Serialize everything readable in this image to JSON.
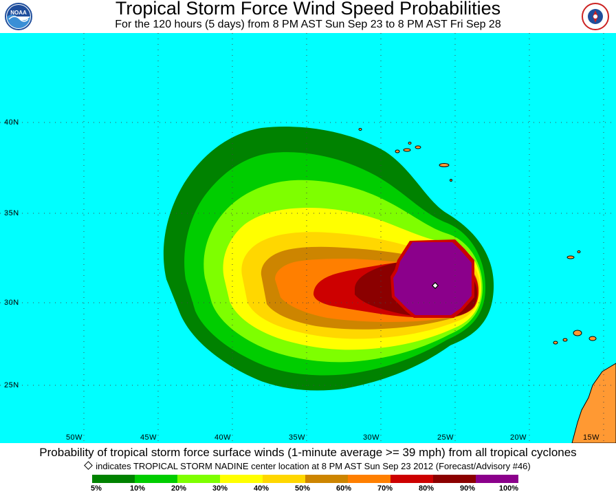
{
  "header": {
    "title": "Tropical Storm Force Wind Speed Probabilities",
    "subtitle": "For the 120 hours (5 days) from 8 PM AST Sun Sep 23 to 8 PM AST Fri Sep 28",
    "logo_left": "NOAA",
    "logo_right": "NATIONAL WEATHER SERVICE"
  },
  "map": {
    "background_color": "#00ffff",
    "land_color": "#ff9933",
    "lat_labels": [
      "40N",
      "35N",
      "30N",
      "25N"
    ],
    "lon_labels": [
      "50W",
      "45W",
      "40W",
      "35W",
      "30W",
      "25W",
      "20W",
      "15W"
    ],
    "storm_marker": "diamond-icon"
  },
  "footer": {
    "line1": "Probability of tropical storm force surface winds (1-minute average >= 39 mph) from all tropical cyclones",
    "line2": "indicates TROPICAL STORM NADINE center location at 8 PM AST Sun Sep 23 2012 (Forecast/Advisory #46)"
  },
  "legend": {
    "colors": [
      "#008200",
      "#00cd00",
      "#7eff00",
      "#ffff00",
      "#ffd700",
      "#cd8500",
      "#ff7f00",
      "#cd0000",
      "#8b0000",
      "#8b008b"
    ],
    "labels": [
      "5%",
      "10%",
      "20%",
      "30%",
      "40%",
      "50%",
      "60%",
      "70%",
      "80%",
      "90%",
      "100%"
    ]
  }
}
